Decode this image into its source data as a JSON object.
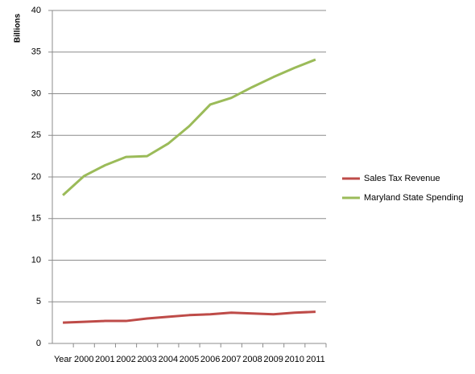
{
  "chart_data": {
    "type": "line",
    "y_label": "Billions",
    "categories": [
      "Year",
      "2000",
      "2001",
      "2002",
      "2003",
      "2004",
      "2005",
      "2006",
      "2007",
      "2008",
      "2009",
      "2010",
      "2011"
    ],
    "series": [
      {
        "name": "Sales Tax Revenue",
        "color": "#be4b48",
        "values": [
          2.5,
          2.6,
          2.7,
          2.7,
          3.0,
          3.2,
          3.4,
          3.5,
          3.7,
          3.6,
          3.5,
          3.7,
          3.8
        ]
      },
      {
        "name": "Maryland State Spending",
        "color": "#9bbb59",
        "values": [
          17.8,
          20.1,
          21.4,
          22.4,
          22.5,
          24.0,
          26.1,
          28.7,
          29.5,
          30.8,
          32.0,
          33.1,
          34.1
        ]
      }
    ],
    "ylim": [
      0,
      40
    ],
    "yticks": [
      0,
      5,
      10,
      15,
      20,
      25,
      30,
      35,
      40
    ],
    "grid": true,
    "legend": "right"
  }
}
